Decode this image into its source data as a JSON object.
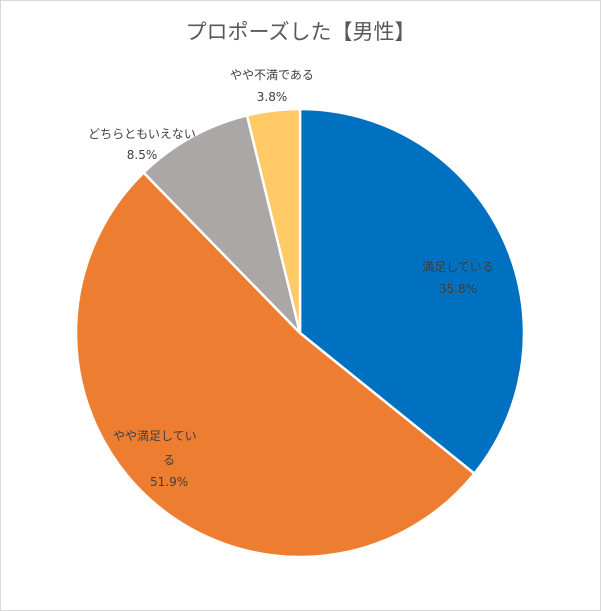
{
  "chart_data": {
    "type": "pie",
    "title": "プロポーズした【男性】",
    "slices": [
      {
        "name": "満足している",
        "value": 35.8,
        "label": "35.8%",
        "color": "#0070C0"
      },
      {
        "name": "やや満足している",
        "value": 51.9,
        "label": "51.9%",
        "color": "#ED7D31"
      },
      {
        "name": "どちらともいえない",
        "value": 8.5,
        "label": "8.5%",
        "color": "#ABA7A6"
      },
      {
        "name": "やや不満である",
        "value": 3.8,
        "label": "3.8%",
        "color": "#FFC966"
      }
    ],
    "legend": "none"
  }
}
